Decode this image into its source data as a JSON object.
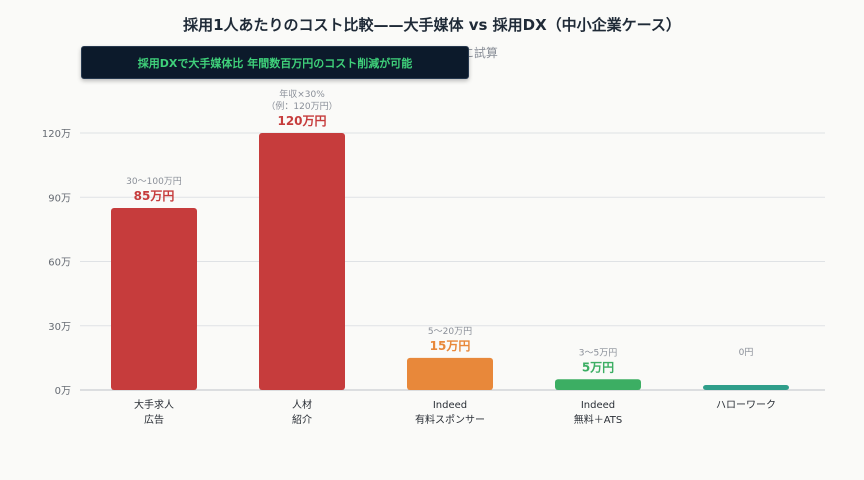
{
  "chart_data": {
    "type": "bar",
    "title": "採用1人あたりのコスト比較——大手媒体 vs 採用DX（中小企業ケース）",
    "subtitle": "社公開情報をもとに試算",
    "banner": "採用DXで大手媒体比 年間数百万円のコスト削減が可能",
    "ylim": [
      0,
      130
    ],
    "yticks": [
      0,
      30,
      60,
      90,
      120
    ],
    "ytick_labels": [
      "0万",
      "30万",
      "60万",
      "90万",
      "120万"
    ],
    "grid": true,
    "categories": [
      [
        "大手求人",
        "広告"
      ],
      [
        "人材",
        "紹介"
      ],
      [
        "Indeed",
        "有料スポンサー"
      ],
      [
        "Indeed",
        "無料＋ATS"
      ],
      [
        "ハローワーク"
      ]
    ],
    "values": [
      85,
      120,
      15,
      5,
      0
    ],
    "value_labels": [
      "85万円",
      "120万円",
      "15万円",
      "5万円",
      ""
    ],
    "range_labels": [
      [
        "30～100万円"
      ],
      [
        "年収×30%",
        "（例：120万円）"
      ],
      [
        "5～20万円"
      ],
      [
        "3～5万円"
      ],
      [
        "0円"
      ]
    ],
    "colors": [
      "#c63c3c",
      "#c63c3c",
      "#e8883a",
      "#3cae63",
      "#2f9e8a"
    ]
  }
}
